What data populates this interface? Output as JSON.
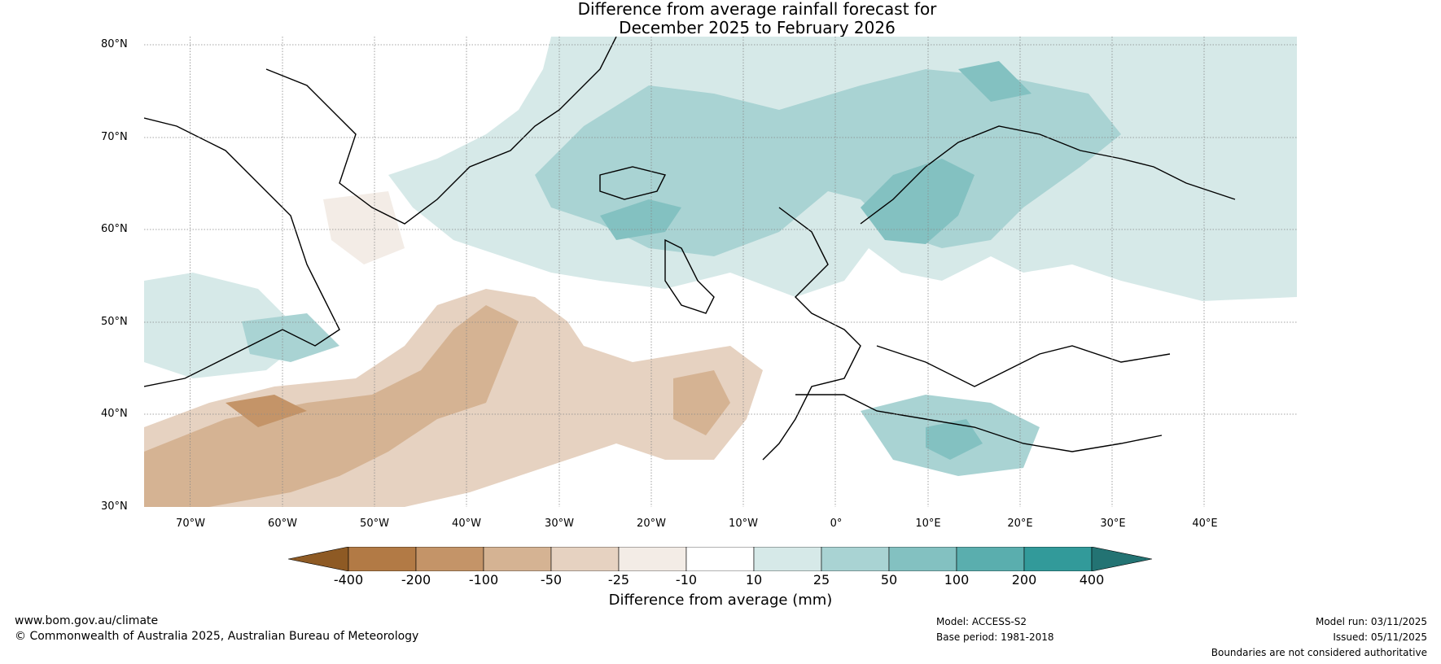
{
  "title_line1": "Difference from average rainfall forecast for",
  "title_line2": "December 2025 to February 2026",
  "lat_labels": [
    "80°N",
    "70°N",
    "60°N",
    "50°N",
    "40°N",
    "30°N"
  ],
  "lon_labels": [
    "70°W",
    "60°W",
    "50°W",
    "40°W",
    "30°W",
    "20°W",
    "10°W",
    "0°",
    "10°E",
    "20°E",
    "30°E",
    "40°E"
  ],
  "colorbar": {
    "ticks": [
      "-400",
      "-200",
      "-100",
      "-50",
      "-25",
      "-10",
      "10",
      "25",
      "50",
      "100",
      "200",
      "400"
    ],
    "colors": [
      "#8e5a24",
      "#b27a45",
      "#c49468",
      "#d5b393",
      "#e6d2c1",
      "#f3ece6",
      "#ffffff",
      "#d6e9e8",
      "#a9d3d3",
      "#83c1c1",
      "#5aaeae",
      "#329a9a",
      "#237373"
    ],
    "label": "Difference from average (mm)"
  },
  "footer": {
    "website": "www.bom.gov.au/climate",
    "copyright": "© Commonwealth of Australia 2025, Australian Bureau of Meteorology",
    "model": "Model: ACCESS-S2",
    "base_period": "Base period: 1981-2018",
    "model_run": "Model run: 03/11/2025",
    "issued": "Issued: 05/11/2025",
    "disclaimer": "Boundaries are not considered authoritative"
  }
}
